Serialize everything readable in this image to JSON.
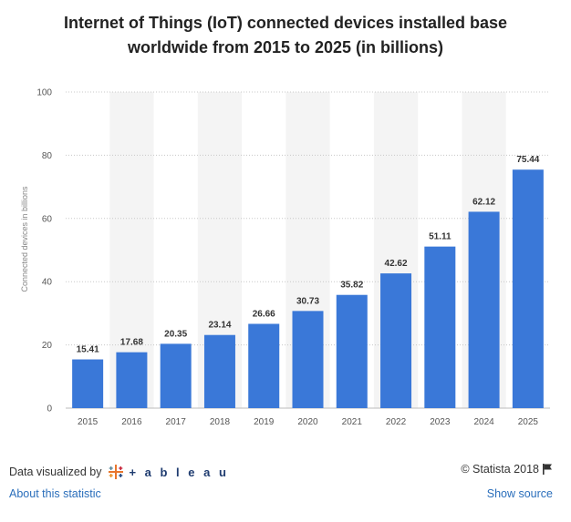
{
  "chart_data": {
    "type": "bar",
    "title_line1": "Internet of Things (IoT) connected devices installed base",
    "title_line2": "worldwide from 2015 to 2025 (in billions)",
    "ylabel": "Connected devices in billions",
    "xlabel": "",
    "categories": [
      "2015",
      "2016",
      "2017",
      "2018",
      "2019",
      "2020",
      "2021",
      "2022",
      "2023",
      "2024",
      "2025"
    ],
    "values": [
      15.41,
      17.68,
      20.35,
      23.14,
      26.66,
      30.73,
      35.82,
      42.62,
      51.11,
      62.12,
      75.44
    ],
    "data_labels": [
      "15.41",
      "17.68",
      "20.35",
      "23.14",
      "26.66",
      "30.73",
      "35.82",
      "42.62",
      "51.11",
      "62.12",
      "75.44"
    ],
    "ylim": [
      0,
      100
    ],
    "yticks": [
      0,
      20,
      40,
      60,
      80,
      100
    ],
    "grid": true,
    "legend": "none",
    "bar_color": "#3a78d8",
    "band_color": "#f4f4f4"
  },
  "footer": {
    "visualized_by": "Data visualized by",
    "tableau_text": "+ a b l e a u",
    "copyright": "© Statista 2018",
    "about_link": "About this statistic",
    "source_link": "Show source"
  }
}
